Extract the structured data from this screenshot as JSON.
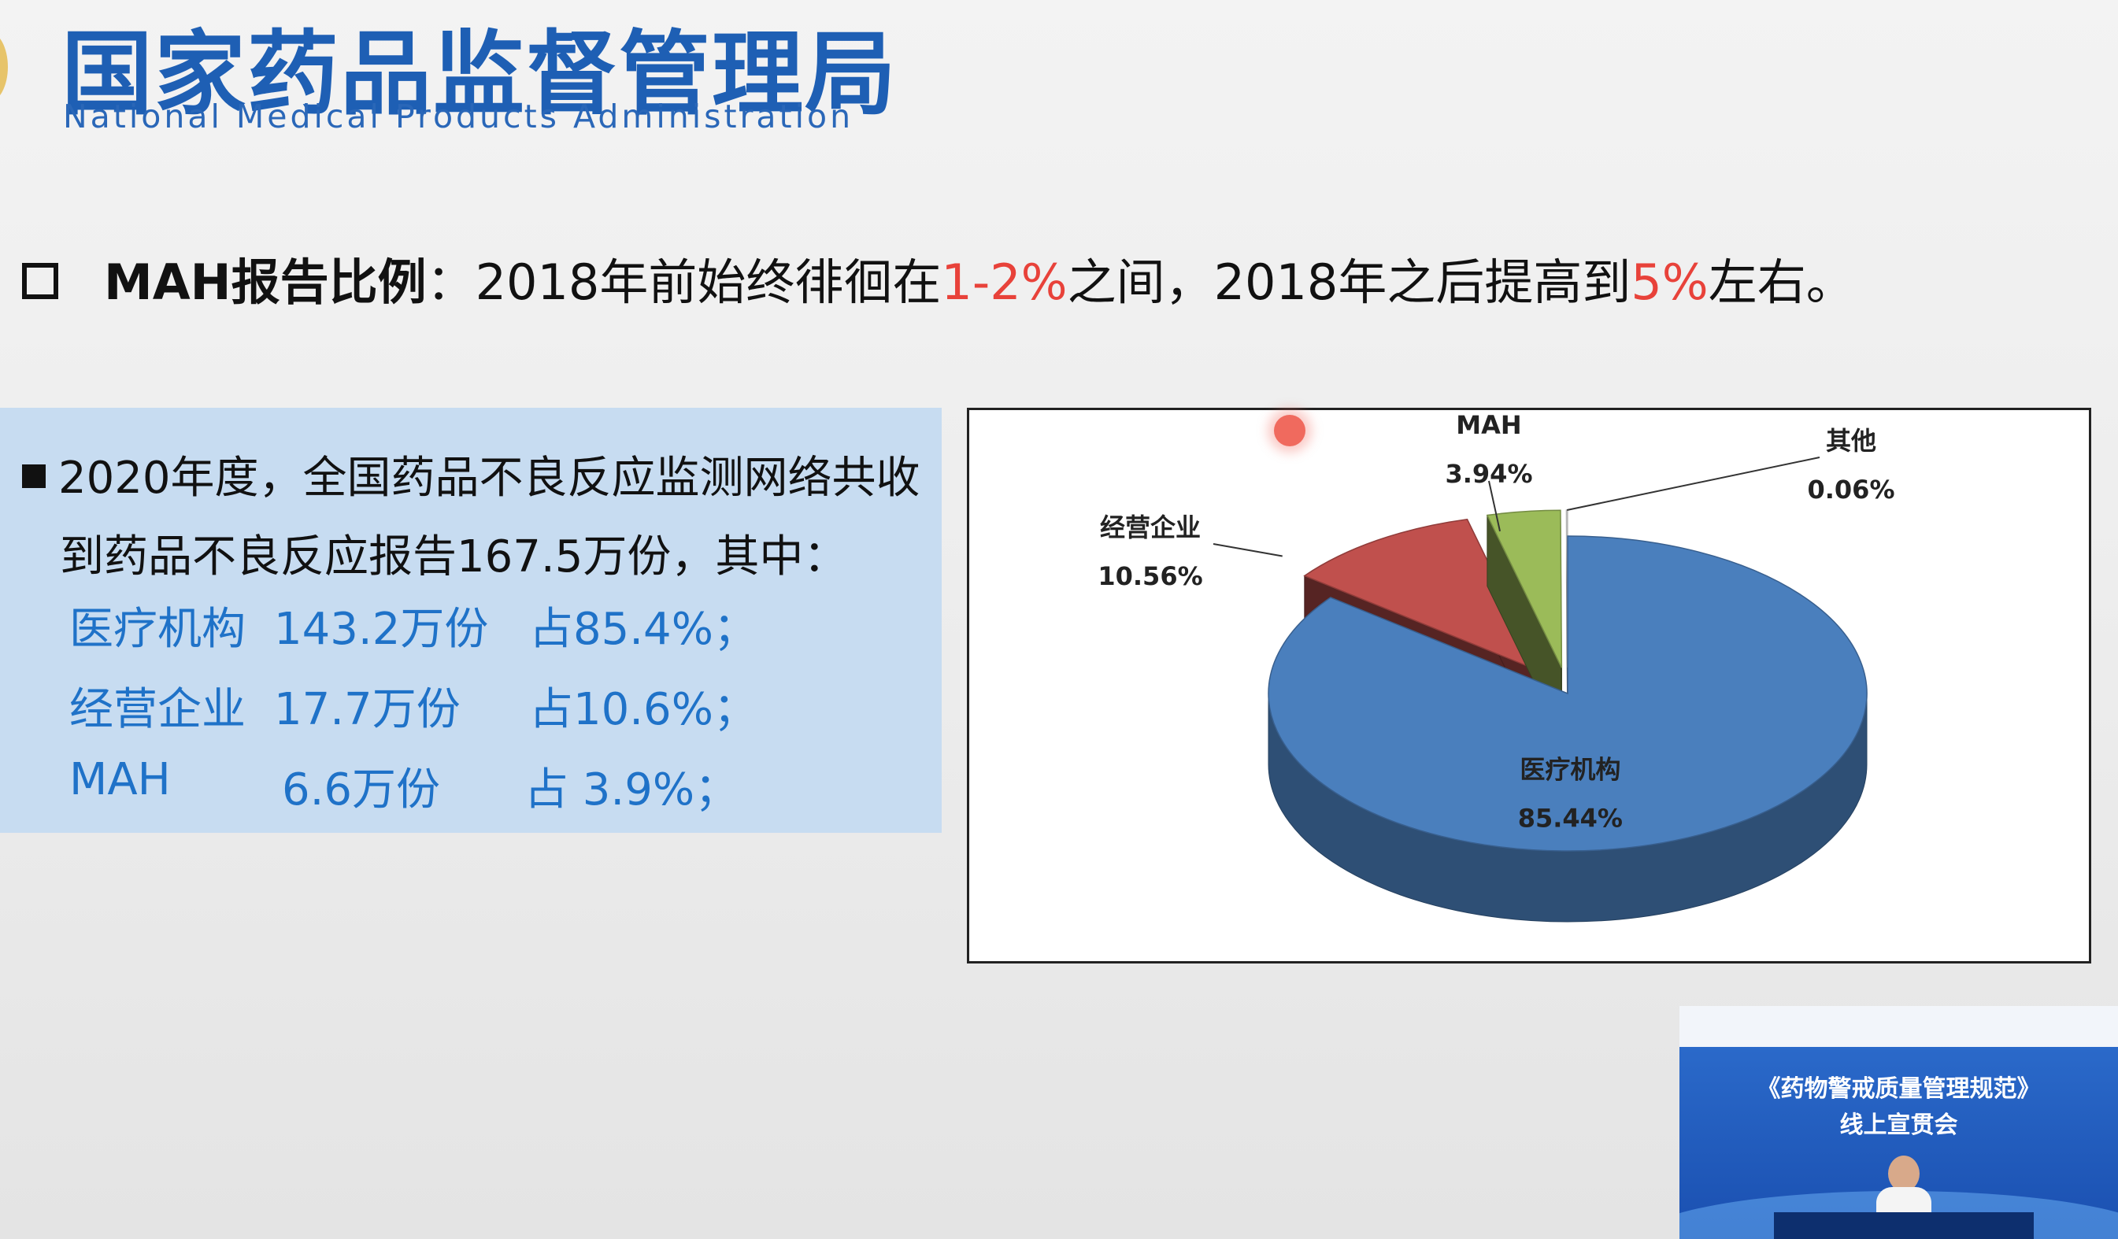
{
  "header": {
    "title_cn": "国家药品监督管理局",
    "title_en": "National Medical Products Administration"
  },
  "headline": {
    "bold": "MAH报告比例",
    "p1": "：2018年前始终徘徊在",
    "red1": "1-2%",
    "p2": "之间，2018年之后提高到",
    "red2": "5%",
    "p3": "左右。"
  },
  "info": {
    "intro_line1": "2020年度，全国药品不良反应监测网络共收",
    "intro_line2": "到药品不良反应报告167.5万份，其中：",
    "rows": [
      {
        "name": "医疗机构",
        "count": "143.2万份",
        "share": "占85.4%；"
      },
      {
        "name": "经营企业",
        "count": "17.7万份",
        "share": "占10.6%；"
      },
      {
        "name": "MAH",
        "count": "6.6万份",
        "share": "占 3.9%；"
      }
    ]
  },
  "chart_data": {
    "type": "pie",
    "three_d": true,
    "slices": [
      {
        "label": "医疗机构",
        "value": 85.44,
        "display": "85.44%",
        "color": "#4a7fbd",
        "exploded": false
      },
      {
        "label": "经营企业",
        "value": 10.56,
        "display": "10.56%",
        "color": "#c0504d",
        "exploded": true
      },
      {
        "label": "MAH",
        "value": 3.94,
        "display": "3.94%",
        "color": "#9bbb59",
        "exploded": true
      },
      {
        "label": "其他",
        "value": 0.06,
        "display": "0.06%",
        "color": "#f2f2f2",
        "exploded": true
      }
    ]
  },
  "video": {
    "title": "《药物警戒质量管理规范》",
    "subtitle": "线上宣贯会"
  }
}
